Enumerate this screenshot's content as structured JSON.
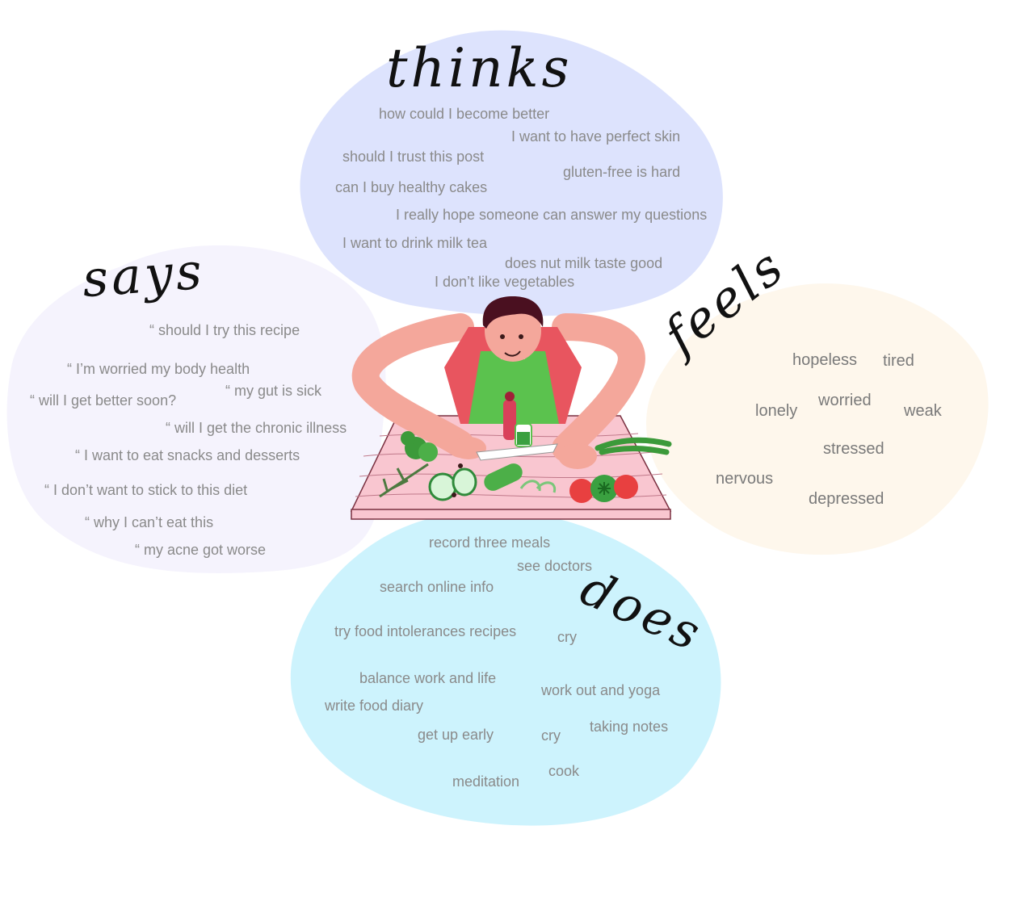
{
  "quadrants": {
    "thinks": {
      "title": "thinks",
      "color": "#dde3fd",
      "items": [
        "how could I become better",
        "I want to have perfect skin",
        "should I trust this post",
        "gluten-free is hard",
        "can I buy healthy cakes",
        "I really hope someone can answer my questions",
        "I want to drink milk tea",
        "does nut milk taste good",
        "I don’t like vegetables"
      ]
    },
    "says": {
      "title": "says",
      "color": "#f5f3fd",
      "items": [
        "“ should I try this recipe",
        "“ I’m worried my body health",
        "“ will I get better soon?",
        "“ my gut is sick",
        "“ will I get the chronic illness",
        "“ I want to eat snacks and desserts",
        "“ I don’t want to stick to this diet",
        "“ why I can’t eat this",
        "“ my acne got worse"
      ]
    },
    "feels": {
      "title": "feels",
      "color": "#fef7ec",
      "items": [
        "hopeless",
        "tired",
        "lonely",
        "worried",
        "weak",
        "stressed",
        "nervous",
        "depressed"
      ]
    },
    "does": {
      "title": "does",
      "color": "#cdf3fd",
      "items": [
        "record three meals",
        "see doctors",
        "search online info",
        "try food intolerances recipes",
        "cry",
        "balance work and life",
        "work out and yoga",
        "write food diary",
        "get up early",
        "cry",
        "taking notes",
        "cook",
        "meditation"
      ]
    }
  },
  "illustration": {
    "name": "person-cutting-vegetables",
    "colors": {
      "skin": "#f4a79b",
      "shirt": "#e8555f",
      "apron": "#5bc24e",
      "hair": "#4a1020",
      "board": "#f9c6d0"
    }
  }
}
